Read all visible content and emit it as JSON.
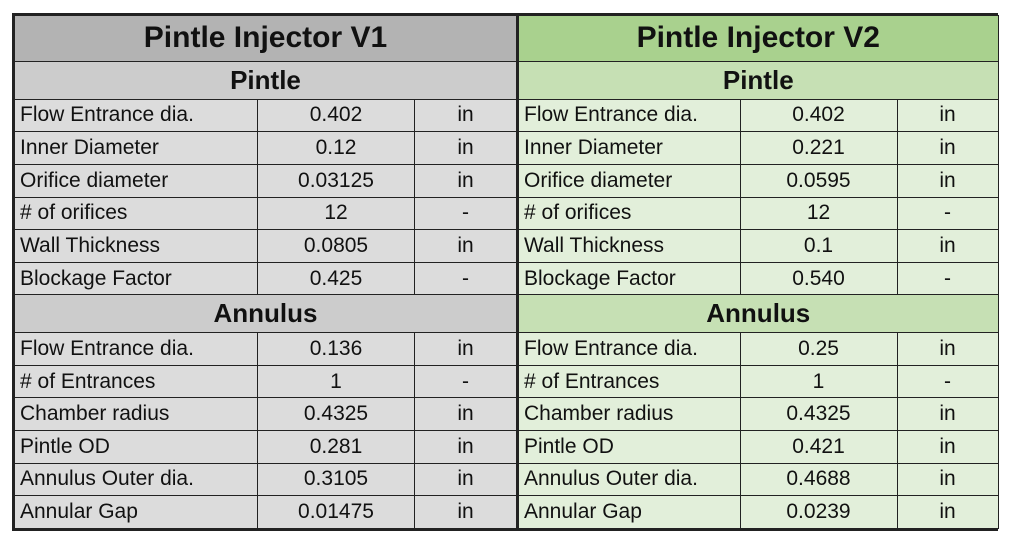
{
  "v1": {
    "title": "Pintle Injector V1",
    "pintle": {
      "heading": "Pintle",
      "rows": [
        {
          "label": "Flow Entrance dia.",
          "value": "0.402",
          "unit": "in"
        },
        {
          "label": "Inner Diameter",
          "value": "0.12",
          "unit": "in"
        },
        {
          "label": "Orifice diameter",
          "value": "0.03125",
          "unit": "in"
        },
        {
          "label": "# of orifices",
          "value": "12",
          "unit": "-"
        },
        {
          "label": "Wall Thickness",
          "value": "0.0805",
          "unit": "in"
        },
        {
          "label": "Blockage Factor",
          "value": "0.425",
          "unit": "-"
        }
      ]
    },
    "annulus": {
      "heading": "Annulus",
      "rows": [
        {
          "label": "Flow Entrance dia.",
          "value": "0.136",
          "unit": "in"
        },
        {
          "label": "# of Entrances",
          "value": "1",
          "unit": "-"
        },
        {
          "label": "Chamber radius",
          "value": "0.4325",
          "unit": "in"
        },
        {
          "label": "Pintle OD",
          "value": "0.281",
          "unit": "in"
        },
        {
          "label": "Annulus Outer dia.",
          "value": "0.3105",
          "unit": "in"
        },
        {
          "label": "Annular Gap",
          "value": "0.01475",
          "unit": "in"
        }
      ]
    }
  },
  "v2": {
    "title": "Pintle Injector V2",
    "pintle": {
      "heading": "Pintle",
      "rows": [
        {
          "label": "Flow Entrance dia.",
          "value": "0.402",
          "unit": "in"
        },
        {
          "label": "Inner Diameter",
          "value": "0.221",
          "unit": "in"
        },
        {
          "label": "Orifice diameter",
          "value": "0.0595",
          "unit": "in"
        },
        {
          "label": "# of orifices",
          "value": "12",
          "unit": "-"
        },
        {
          "label": "Wall Thickness",
          "value": "0.1",
          "unit": "in"
        },
        {
          "label": "Blockage Factor",
          "value": "0.540",
          "unit": "-"
        }
      ]
    },
    "annulus": {
      "heading": "Annulus",
      "rows": [
        {
          "label": "Flow Entrance dia.",
          "value": "0.25",
          "unit": "in"
        },
        {
          "label": "# of Entrances",
          "value": "1",
          "unit": "-"
        },
        {
          "label": "Chamber radius",
          "value": "0.4325",
          "unit": "in"
        },
        {
          "label": "Pintle OD",
          "value": "0.421",
          "unit": "in"
        },
        {
          "label": "Annulus Outer dia.",
          "value": "0.4688",
          "unit": "in"
        },
        {
          "label": "Annular Gap",
          "value": "0.0239",
          "unit": "in"
        }
      ]
    }
  },
  "colors": {
    "v1_title_bg": "#b3b3b3",
    "v1_section_bg": "#cccccc",
    "v1_row_bg": "#dcdcdc",
    "v2_title_bg": "#a9d18e",
    "v2_section_bg": "#c6e0b4",
    "v2_row_bg": "#e2efda"
  }
}
